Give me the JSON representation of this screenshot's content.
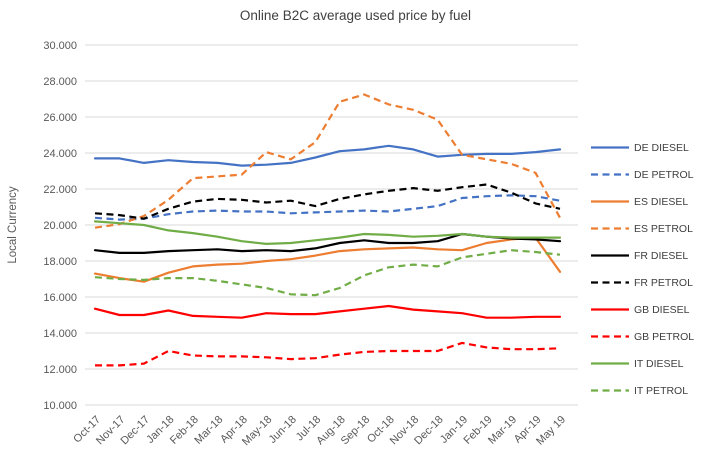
{
  "title": "Online B2C average used price by fuel",
  "chart_data": {
    "type": "line",
    "title": "Online B2C average used price by fuel",
    "xlabel": "",
    "ylabel": "Local Currency",
    "ylim": [
      10000,
      30000
    ],
    "y_tick_step": 2000,
    "y_tick_labels": [
      "10.000",
      "12.000",
      "14.000",
      "16.000",
      "18.000",
      "20.000",
      "22.000",
      "24.000",
      "26.000",
      "28.000",
      "30.000"
    ],
    "grid": "horizontal",
    "legend_position": "right",
    "categories": [
      "Oct-17",
      "Nov-17",
      "Dec-17",
      "Jan-18",
      "Feb-18",
      "Mar-18",
      "Apr-18",
      "May-18",
      "Jun-18",
      "Jul-18",
      "Aug-18",
      "Sep-18",
      "Oct-18",
      "Nov-18",
      "Dec-18",
      "Jan-19",
      "Feb-19",
      "Mar-19",
      "Apr-19",
      "May 19"
    ],
    "series": [
      {
        "name": "DE DIESEL",
        "color": "#4472c4",
        "line_style": "solid",
        "values": [
          23700,
          23700,
          23450,
          23600,
          23500,
          23450,
          23300,
          23350,
          23450,
          23750,
          24100,
          24200,
          24400,
          24200,
          23800,
          23900,
          23950,
          23950,
          24050,
          24200
        ]
      },
      {
        "name": "DE PETROL",
        "color": "#4472c4",
        "line_style": "dashed",
        "values": [
          20400,
          20300,
          20350,
          20600,
          20750,
          20800,
          20750,
          20750,
          20650,
          20700,
          20750,
          20800,
          20750,
          20900,
          21050,
          21500,
          21600,
          21650,
          21600,
          21350
        ]
      },
      {
        "name": "ES DIESEL",
        "color": "#ed7d31",
        "line_style": "solid",
        "values": [
          17300,
          17050,
          16850,
          17350,
          17700,
          17800,
          17850,
          18000,
          18100,
          18300,
          18550,
          18650,
          18700,
          18750,
          18650,
          18600,
          19000,
          19200,
          19300,
          17400
        ]
      },
      {
        "name": "ES PETROL",
        "color": "#ed7d31",
        "line_style": "dashed",
        "values": [
          19850,
          20050,
          20500,
          21400,
          22600,
          22700,
          22800,
          24050,
          23650,
          24600,
          26850,
          27250,
          26700,
          26400,
          25850,
          23900,
          23650,
          23400,
          22900,
          20400
        ]
      },
      {
        "name": "FR DIESEL",
        "color": "#000000",
        "line_style": "solid",
        "values": [
          18600,
          18450,
          18450,
          18550,
          18600,
          18650,
          18550,
          18600,
          18550,
          18700,
          19000,
          19150,
          19000,
          19000,
          19100,
          19500,
          19350,
          19250,
          19200,
          19100
        ]
      },
      {
        "name": "FR PETROL",
        "color": "#000000",
        "line_style": "dashed",
        "values": [
          20650,
          20550,
          20350,
          20900,
          21300,
          21450,
          21400,
          21250,
          21350,
          21050,
          21450,
          21700,
          21900,
          22050,
          21900,
          22100,
          22250,
          21800,
          21200,
          20900
        ]
      },
      {
        "name": "GB DIESEL",
        "color": "#ff0000",
        "line_style": "solid",
        "values": [
          15350,
          15000,
          15000,
          15250,
          14950,
          14900,
          14850,
          15100,
          15050,
          15050,
          15200,
          15350,
          15500,
          15300,
          15200,
          15100,
          14850,
          14850,
          14900,
          14900
        ]
      },
      {
        "name": "GB PETROL",
        "color": "#ff0000",
        "line_style": "dashed",
        "values": [
          12200,
          12200,
          12300,
          13000,
          12750,
          12700,
          12700,
          12650,
          12550,
          12600,
          12800,
          12950,
          13000,
          13000,
          13000,
          13450,
          13200,
          13100,
          13100,
          13150
        ]
      },
      {
        "name": "IT DIESEL",
        "color": "#70ad47",
        "line_style": "solid",
        "values": [
          20200,
          20100,
          20000,
          19700,
          19550,
          19350,
          19100,
          18950,
          19000,
          19150,
          19300,
          19500,
          19450,
          19350,
          19400,
          19500,
          19350,
          19300,
          19300,
          19300
        ]
      },
      {
        "name": "IT PETROL",
        "color": "#70ad47",
        "line_style": "dashed",
        "values": [
          17100,
          17000,
          16950,
          17050,
          17050,
          16900,
          16700,
          16500,
          16150,
          16100,
          16500,
          17200,
          17650,
          17800,
          17700,
          18200,
          18400,
          18600,
          18500,
          18350
        ]
      }
    ]
  }
}
